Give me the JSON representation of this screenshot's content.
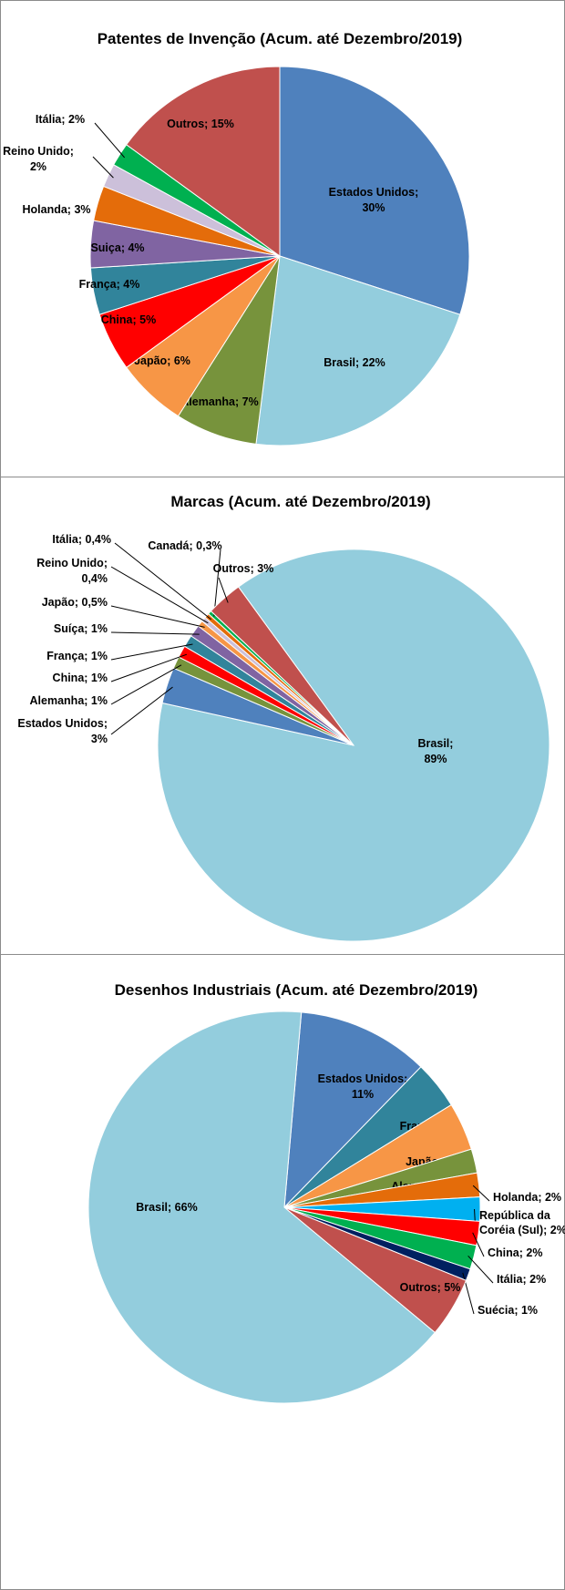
{
  "chart_data": [
    {
      "type": "pie",
      "title": "Patentes de Invenção (Acum. até Dezembro/2019)",
      "categories": [
        "Estados Unidos",
        "Brasil",
        "Alemanha",
        "Japão",
        "China",
        "França",
        "Suiça",
        "Holanda",
        "Reino Unido",
        "Itália",
        "Outros"
      ],
      "values": [
        30,
        22,
        7,
        6,
        5,
        4,
        4,
        3,
        2,
        2,
        15
      ],
      "value_labels": [
        "30%",
        "22%",
        "7%",
        "6%",
        "5%",
        "4%",
        "4%",
        "3%",
        "2%",
        "2%",
        "15%"
      ],
      "colors": [
        "#4f81bd",
        "#93cddd",
        "#77933c",
        "#f79646",
        "#ff0000",
        "#31849b",
        "#8064a2",
        "#e46c0a",
        "#ccc0da",
        "#00b050",
        "#c0504d"
      ]
    },
    {
      "type": "pie",
      "title": "Marcas (Acum. até Dezembro/2019)",
      "categories": [
        "Brasil",
        "Estados Unidos",
        "Alemanha",
        "China",
        "França",
        "Suíça",
        "Japão",
        "Reino Unido",
        "Itália",
        "Canadá",
        "Outros"
      ],
      "values": [
        89,
        3,
        1,
        1,
        1,
        1,
        0.5,
        0.4,
        0.4,
        0.3,
        3
      ],
      "value_labels": [
        "89%",
        "3%",
        "1%",
        "1%",
        "1%",
        "1%",
        "0,5%",
        "0,4%",
        "0,4%",
        "0,3%",
        "3%"
      ],
      "colors": [
        "#93cddd",
        "#4f81bd",
        "#77933c",
        "#ff0000",
        "#31849b",
        "#8064a2",
        "#f79646",
        "#ccc0da",
        "#e46c0a",
        "#00b050",
        "#c0504d"
      ]
    },
    {
      "type": "pie",
      "title": "Desenhos Industriais (Acum. até Dezembro/2019)",
      "categories": [
        "Estados Unidos",
        "França",
        "Japão",
        "Alemanha",
        "Holanda",
        "República da Coréia (Sul)",
        "China",
        "Itália",
        "Suécia",
        "Outros",
        "Brasil"
      ],
      "values": [
        11,
        4,
        4,
        2,
        2,
        2,
        2,
        2,
        1,
        5,
        66
      ],
      "value_labels": [
        "11%",
        "4%",
        "4%",
        "2%",
        "2%",
        "2%",
        "2%",
        "2%",
        "1%",
        "5%",
        "66%"
      ],
      "colors": [
        "#4f81bd",
        "#31849b",
        "#f79646",
        "#77933c",
        "#e46c0a",
        "#00b0f0",
        "#ff0000",
        "#00b050",
        "#002060",
        "#c0504d",
        "#93cddd"
      ]
    }
  ]
}
